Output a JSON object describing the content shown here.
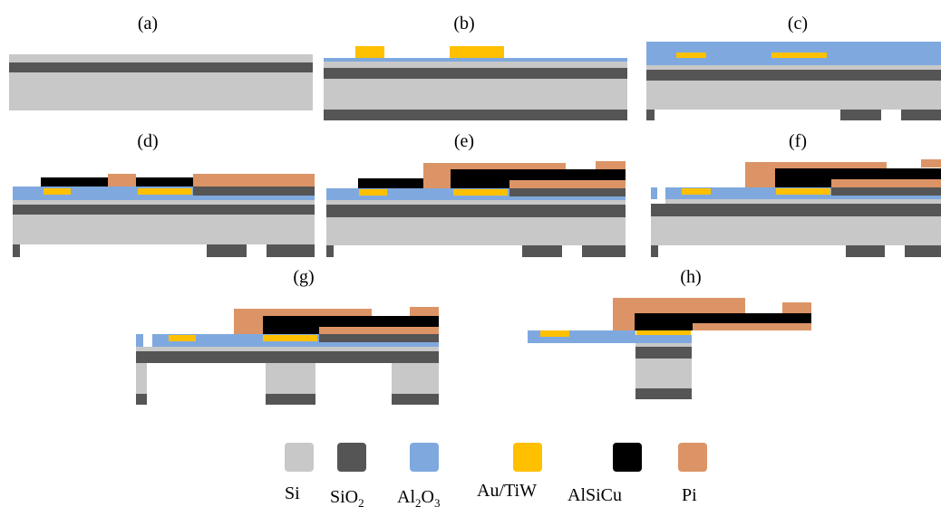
{
  "materials": {
    "si": {
      "name": "Si",
      "color": "#c8c8c8"
    },
    "sio2": {
      "name": "SiO",
      "sub": "2",
      "color": "#555555"
    },
    "al2o3": {
      "name": "Al",
      "sub": "2",
      "tail": "O",
      "sub2": "3",
      "color": "#7fa9de"
    },
    "autiw": {
      "name": "Au/TiW",
      "color": "#ffc000"
    },
    "alsicu": {
      "name": "AlSiCu",
      "color": "#000000"
    },
    "pi": {
      "name": "Pi",
      "color": "#dc9466"
    }
  },
  "panels": {
    "a": "(a)",
    "b": "(b)",
    "c": "(c)",
    "d": "(d)",
    "e": "(e)",
    "f": "(f)",
    "g": "(g)",
    "h": "(h)"
  }
}
